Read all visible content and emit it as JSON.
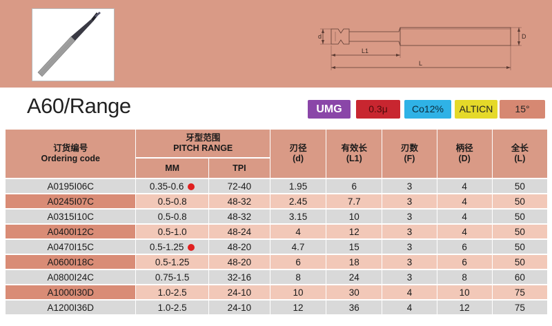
{
  "product": {
    "title": "A60/Range",
    "photo_icon": "thread-mill-tool-photo",
    "drawing_icon": "tool-dimension-drawing",
    "drawing_labels": {
      "d": "d",
      "D": "D",
      "L1": "L1",
      "L": "L"
    }
  },
  "badges": [
    {
      "label": "UMG",
      "color": "#8a46a8"
    },
    {
      "label": "0.3μ",
      "color": "#c82630"
    },
    {
      "label": "Co12%",
      "color": "#2fb2e6"
    },
    {
      "label": "ALTICN",
      "color": "#e5d929"
    },
    {
      "label": "15°",
      "color": "#d68872"
    }
  ],
  "table": {
    "header": {
      "code_cn": "订货编号",
      "code_en": "Ordering code",
      "pitch_cn": "牙型范围",
      "pitch_en": "PITCH RANGE",
      "mm": "MM",
      "tpi": "TPI",
      "d_cn": "刃径",
      "d_en": "(d)",
      "l1_cn": "有效长",
      "l1_en": "(L1)",
      "f_cn": "刃数",
      "f_en": "(F)",
      "dd_cn": "柄径",
      "dd_en": "(D)",
      "l_cn": "全长",
      "l_en": "(L)"
    },
    "rows": [
      {
        "code": "A0195I06C",
        "mm": "0.35-0.6",
        "tpi": "72-40",
        "d": "1.95",
        "l1": "6",
        "f": "3",
        "shank": "4",
        "l": "50"
      },
      {
        "code": "A0245I07C",
        "mm": "0.5-0.8",
        "tpi": "48-32",
        "d": "2.45",
        "l1": "7.7",
        "f": "3",
        "shank": "4",
        "l": "50"
      },
      {
        "code": "A0315I10C",
        "mm": "0.5-0.8",
        "tpi": "48-32",
        "d": "3.15",
        "l1": "10",
        "f": "3",
        "shank": "4",
        "l": "50"
      },
      {
        "code": "A0400I12C",
        "mm": "0.5-1.0",
        "tpi": "48-24",
        "d": "4",
        "l1": "12",
        "f": "3",
        "shank": "4",
        "l": "50"
      },
      {
        "code": "A0470I15C",
        "mm": "0.5-1.25",
        "tpi": "48-20",
        "d": "4.7",
        "l1": "15",
        "f": "3",
        "shank": "6",
        "l": "50"
      },
      {
        "code": "A0600I18C",
        "mm": "0.5-1.25",
        "tpi": "48-20",
        "d": "6",
        "l1": "18",
        "f": "3",
        "shank": "6",
        "l": "50"
      },
      {
        "code": "A0800I24C",
        "mm": "0.75-1.5",
        "tpi": "32-16",
        "d": "8",
        "l1": "24",
        "f": "3",
        "shank": "8",
        "l": "60"
      },
      {
        "code": "A1000I30D",
        "mm": "1.0-2.5",
        "tpi": "24-10",
        "d": "10",
        "l1": "30",
        "f": "4",
        "shank": "10",
        "l": "75"
      },
      {
        "code": "A1200I36D",
        "mm": "1.0-2.5",
        "tpi": "24-10",
        "d": "12",
        "l1": "36",
        "f": "4",
        "shank": "12",
        "l": "75"
      }
    ],
    "marked_rows": [
      0,
      4
    ],
    "marker_color": "#e02020"
  }
}
